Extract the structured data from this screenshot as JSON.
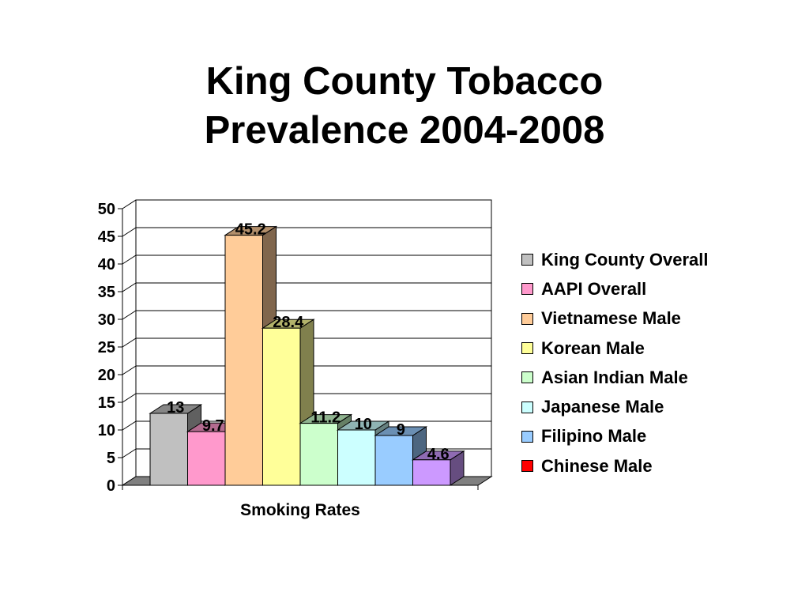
{
  "title_lines": [
    "King County Tobacco",
    "Prevalence 2004-2008"
  ],
  "chart_data": {
    "type": "bar",
    "xlabel": "Smoking Rates",
    "ylabel": "",
    "ylim": [
      0,
      50
    ],
    "yticks": [
      0,
      5,
      10,
      15,
      20,
      25,
      30,
      35,
      40,
      45,
      50
    ],
    "grid": true,
    "legend_position": "right",
    "categories": [
      "Smoking Rates"
    ],
    "series": [
      {
        "name": "King County Overall",
        "values": [
          13
        ],
        "label": "13",
        "color": "#c0c0c0"
      },
      {
        "name": "AAPI Overall",
        "values": [
          9.7
        ],
        "label": "9.7",
        "color": "#ff99cc"
      },
      {
        "name": "Vietnamese Male",
        "values": [
          45.2
        ],
        "label": "45.2",
        "color": "#ffcc99"
      },
      {
        "name": "Korean Male",
        "values": [
          28.4
        ],
        "label": "28.4",
        "color": "#ffff99"
      },
      {
        "name": "Asian Indian Male",
        "values": [
          11.2
        ],
        "label": "11.2",
        "color": "#ccffcc"
      },
      {
        "name": "Japanese Male",
        "values": [
          10
        ],
        "label": "10",
        "color": "#ccffff"
      },
      {
        "name": "Filipino Male",
        "values": [
          9
        ],
        "label": "9",
        "color": "#99ccff"
      },
      {
        "name": "Chinese Male",
        "values": [
          4.6
        ],
        "label": "4.6",
        "color": "#cc99ff"
      }
    ],
    "legend_colors": [
      "#c0c0c0",
      "#ff99cc",
      "#ffcc99",
      "#ffff99",
      "#ccffcc",
      "#ccffff",
      "#99ccff",
      "#ff0000"
    ]
  }
}
